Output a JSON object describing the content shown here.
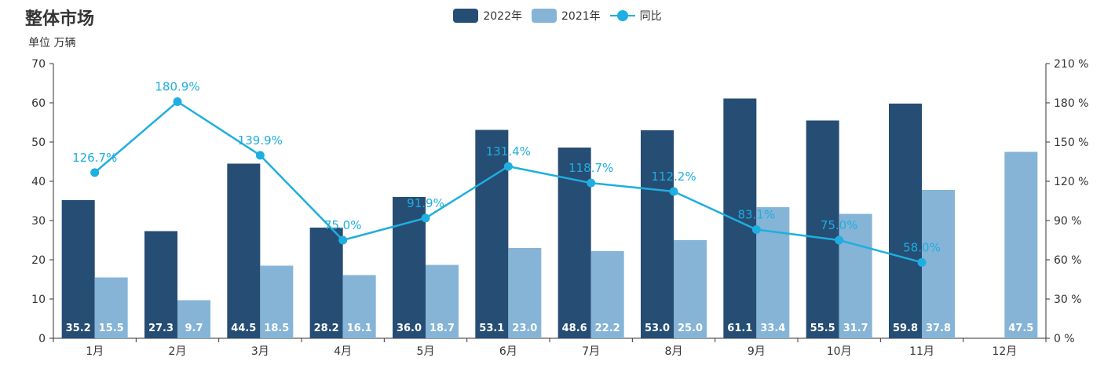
{
  "header": {
    "title": "整体市场",
    "unit": "单位 万辆"
  },
  "legend": [
    {
      "label": "2022年",
      "kind": "bar",
      "color": "#264D73"
    },
    {
      "label": "2021年",
      "kind": "bar",
      "color": "#85B4D6"
    },
    {
      "label": "同比",
      "kind": "line",
      "color": "#1FAEE0"
    }
  ],
  "chart_data": {
    "type": "bar",
    "categories": [
      "1月",
      "2月",
      "3月",
      "4月",
      "5月",
      "6月",
      "7月",
      "8月",
      "9月",
      "10月",
      "11月",
      "12月"
    ],
    "series": [
      {
        "name": "2022年",
        "type": "bar",
        "axis": "left",
        "values": [
          35.2,
          27.3,
          44.5,
          28.2,
          36.0,
          53.1,
          48.6,
          53.0,
          61.1,
          55.5,
          59.8,
          null
        ],
        "labels": [
          "35.2",
          "27.3",
          "44.5",
          "28.2",
          "36.0",
          "53.1",
          "48.6",
          "53.0",
          "61.1",
          "55.5",
          "59.8",
          ""
        ]
      },
      {
        "name": "2021年",
        "type": "bar",
        "axis": "left",
        "values": [
          15.5,
          9.7,
          18.5,
          16.1,
          18.7,
          23.0,
          22.2,
          25.0,
          33.4,
          31.7,
          37.8,
          47.5
        ],
        "labels": [
          "15.5",
          "9.7",
          "18.5",
          "16.1",
          "18.7",
          "23.0",
          "22.2",
          "25.0",
          "33.4",
          "31.7",
          "37.8",
          "47.5"
        ]
      },
      {
        "name": "同比",
        "type": "line",
        "axis": "right",
        "values": [
          126.7,
          180.9,
          139.9,
          75.0,
          91.9,
          131.4,
          118.7,
          112.2,
          83.1,
          75.0,
          58.0,
          null
        ],
        "labels": [
          "126.7%",
          "180.9%",
          "139.9%",
          "75.0%",
          "91.9%",
          "131.4%",
          "118.7%",
          "112.2%",
          "83.1%",
          "75.0%",
          "58.0%",
          ""
        ]
      }
    ],
    "y_left": {
      "min": 0,
      "max": 70,
      "ticks": [
        "0",
        "10",
        "20",
        "30",
        "40",
        "50",
        "60",
        "70"
      ]
    },
    "y_right": {
      "min": 0,
      "max": 210,
      "ticks": [
        "0 %",
        "30 %",
        "60 %",
        "90 %",
        "120 %",
        "150 %",
        "180 %",
        "210 %"
      ]
    },
    "grid": false,
    "legend_position": "top-center"
  }
}
